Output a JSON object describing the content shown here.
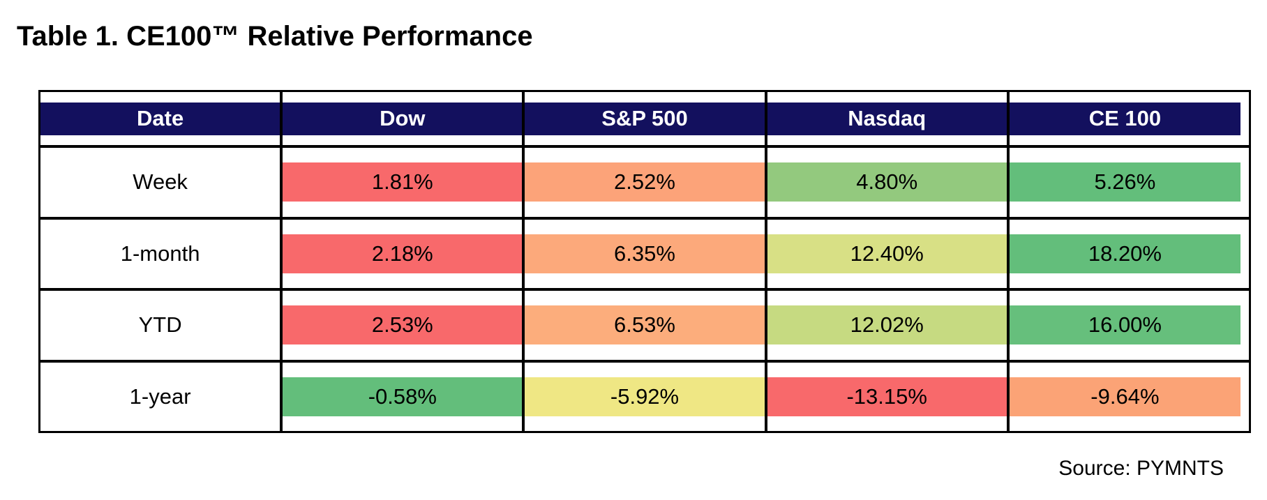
{
  "title": "Table 1. CE100™ Relative Performance",
  "source": "Source: PYMNTS",
  "colors": {
    "header_bg": "#13105E",
    "header_text": "#ffffff",
    "border": "#000000",
    "cell_text": "#000000"
  },
  "table": {
    "columns": [
      "Date",
      "Dow",
      "S&P 500",
      "Nasdaq",
      "CE 100"
    ],
    "rows": [
      {
        "label": "Week",
        "cells": [
          {
            "value": "1.81%",
            "bg": "#F8696B"
          },
          {
            "value": "2.52%",
            "bg": "#FCA379"
          },
          {
            "value": "4.80%",
            "bg": "#93C97E"
          },
          {
            "value": "5.26%",
            "bg": "#63BE7B"
          }
        ]
      },
      {
        "label": "1-month",
        "cells": [
          {
            "value": "2.18%",
            "bg": "#F8696B"
          },
          {
            "value": "6.35%",
            "bg": "#FCA97B"
          },
          {
            "value": "12.40%",
            "bg": "#D8E085"
          },
          {
            "value": "18.20%",
            "bg": "#63BE7B"
          }
        ]
      },
      {
        "label": "YTD",
        "cells": [
          {
            "value": "2.53%",
            "bg": "#F8696B"
          },
          {
            "value": "6.53%",
            "bg": "#FCAD7C"
          },
          {
            "value": "12.02%",
            "bg": "#C6DA81"
          },
          {
            "value": "16.00%",
            "bg": "#66BF7C"
          }
        ]
      },
      {
        "label": "1-year",
        "cells": [
          {
            "value": "-0.58%",
            "bg": "#63BE7B"
          },
          {
            "value": "-5.92%",
            "bg": "#EFE784"
          },
          {
            "value": "-13.15%",
            "bg": "#F8696B"
          },
          {
            "value": "-9.64%",
            "bg": "#FBA376"
          }
        ]
      }
    ]
  },
  "chart_data": {
    "type": "table",
    "title": "Table 1. CE100™ Relative Performance",
    "columns": [
      "Date",
      "Dow",
      "S&P 500",
      "Nasdaq",
      "CE 100"
    ],
    "row_labels": [
      "Week",
      "1-month",
      "YTD",
      "1-year"
    ],
    "values_pct": [
      [
        1.81,
        2.52,
        4.8,
        5.26
      ],
      [
        2.18,
        6.35,
        12.4,
        18.2
      ],
      [
        2.53,
        6.53,
        12.02,
        16.0
      ],
      [
        -0.58,
        -5.92,
        -13.15,
        -9.64
      ]
    ],
    "color_scale": "red-yellow-green heatmap applied per row, lowest=red highest=green",
    "source": "Source: PYMNTS"
  }
}
